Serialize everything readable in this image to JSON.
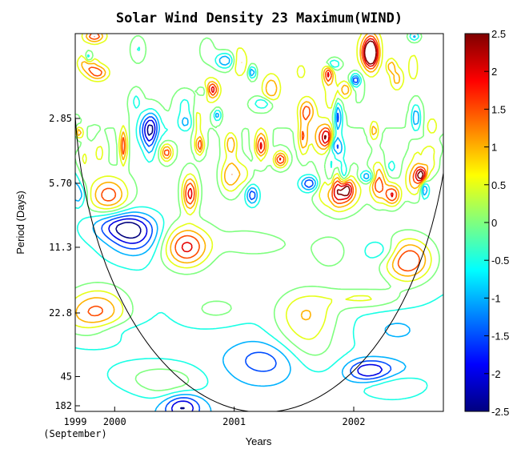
{
  "chart_data": {
    "type": "heatmap",
    "subtype": "wavelet-power-contour",
    "title": "Solar Wind Density 23 Maximum(WIND)",
    "xlabel": "Years",
    "ylabel": "Period (Days)",
    "x_ticks": [
      {
        "label": "1999",
        "sublabel": "(September)",
        "value": 1999.67
      },
      {
        "label": "2000",
        "value": 2000.0
      },
      {
        "label": "2001",
        "value": 2001.0
      },
      {
        "label": "2002",
        "value": 2002.0
      }
    ],
    "xlim": [
      1999.67,
      2002.75
    ],
    "y_ticks": [
      "2.85",
      "5.70",
      "11.3",
      "22.8",
      "45",
      "182"
    ],
    "y_scale": "log2",
    "ylim": [
      1.0,
      182
    ],
    "colorbar": {
      "colormap": "jet",
      "range": [
        -2.5,
        2.5
      ],
      "ticks": [
        "2.5",
        "2",
        "1.5",
        "1",
        "0.5",
        "0",
        "-0.5",
        "-1",
        "-1.5",
        "-2",
        "-2.5"
      ]
    },
    "contour_levels": [
      -2.5,
      -2,
      -1.5,
      -1,
      -0.5,
      0,
      0.5,
      1,
      1.5,
      2,
      2.5
    ],
    "cone_of_influence": true,
    "grid": false,
    "peak_features": [
      {
        "time": 2000.6,
        "period": 11.3,
        "level": 2.5
      },
      {
        "time": 2001.88,
        "period": 6.2,
        "level": 2.5
      },
      {
        "time": 2002.45,
        "period": 13.0,
        "level": 2.5
      },
      {
        "time": 1999.95,
        "period": 6.5,
        "level": 2.0
      },
      {
        "time": 2001.6,
        "period": 22.8,
        "level": 1.5
      },
      {
        "time": 1999.88,
        "period": 22.0,
        "level": 1.5
      }
    ]
  },
  "colors": {
    "colormap_stops": [
      "#00007f",
      "#0000ff",
      "#007fff",
      "#00ffff",
      "#7fff7f",
      "#ffff00",
      "#ff7f00",
      "#ff0000",
      "#7f0000"
    ]
  }
}
